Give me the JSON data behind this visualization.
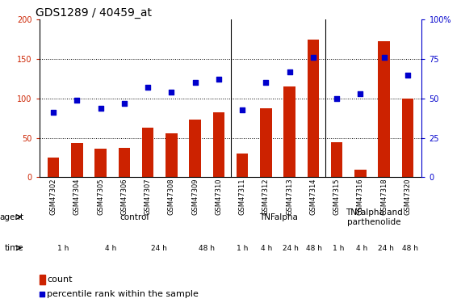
{
  "title": "GDS1289 / 40459_at",
  "samples": [
    "GSM47302",
    "GSM47304",
    "GSM47305",
    "GSM47306",
    "GSM47307",
    "GSM47308",
    "GSM47309",
    "GSM47310",
    "GSM47311",
    "GSM47312",
    "GSM47313",
    "GSM47314",
    "GSM47315",
    "GSM47316",
    "GSM47318",
    "GSM47320"
  ],
  "counts": [
    25,
    43,
    36,
    37,
    63,
    56,
    73,
    82,
    30,
    88,
    115,
    175,
    45,
    10,
    173,
    100
  ],
  "percentiles": [
    41,
    49,
    44,
    47,
    57,
    54,
    60,
    62,
    43,
    60,
    67,
    76,
    50,
    53,
    76,
    65
  ],
  "bar_color": "#cc2200",
  "dot_color": "#0000cc",
  "ylim_left": [
    0,
    200
  ],
  "ylim_right": [
    0,
    100
  ],
  "yticks_left": [
    0,
    50,
    100,
    150,
    200
  ],
  "yticks_right": [
    0,
    25,
    50,
    75,
    100
  ],
  "ytick_labels_left": [
    "0",
    "50",
    "100",
    "150",
    "200"
  ],
  "ytick_labels_right": [
    "0",
    "25",
    "50",
    "75",
    "100%"
  ],
  "agent_groups": [
    {
      "label": "control",
      "start": 0,
      "end": 8,
      "color": "#ccffcc"
    },
    {
      "label": "TNFalpha",
      "start": 8,
      "end": 12,
      "color": "#66ee66"
    },
    {
      "label": "TNFalpha and\nparthenolide",
      "start": 12,
      "end": 16,
      "color": "#33dd33"
    }
  ],
  "time_groups": [
    {
      "label": "1 h",
      "start": 0,
      "end": 2,
      "color": "#ffaaff"
    },
    {
      "label": "4 h",
      "start": 2,
      "end": 4,
      "color": "#dd44dd"
    },
    {
      "label": "24 h",
      "start": 4,
      "end": 6,
      "color": "#ffaaff"
    },
    {
      "label": "48 h",
      "start": 6,
      "end": 8,
      "color": "#dd44dd"
    },
    {
      "label": "1 h",
      "start": 8,
      "end": 9,
      "color": "#ffaaff"
    },
    {
      "label": "4 h",
      "start": 9,
      "end": 10,
      "color": "#dd44dd"
    },
    {
      "label": "24 h",
      "start": 10,
      "end": 11,
      "color": "#ffaaff"
    },
    {
      "label": "48 h",
      "start": 11,
      "end": 12,
      "color": "#dd44dd"
    },
    {
      "label": "1 h",
      "start": 12,
      "end": 13,
      "color": "#ffaaff"
    },
    {
      "label": "4 h",
      "start": 13,
      "end": 14,
      "color": "#dd44dd"
    },
    {
      "label": "24 h",
      "start": 14,
      "end": 15,
      "color": "#ffaaff"
    },
    {
      "label": "48 h",
      "start": 15,
      "end": 16,
      "color": "#dd44dd"
    }
  ],
  "legend_count_color": "#cc2200",
  "legend_dot_color": "#0000cc",
  "legend_count_label": "count",
  "legend_dot_label": "percentile rank within the sample",
  "background_color": "#ffffff",
  "title_fontsize": 10,
  "tick_fontsize": 7,
  "label_fontsize": 8
}
